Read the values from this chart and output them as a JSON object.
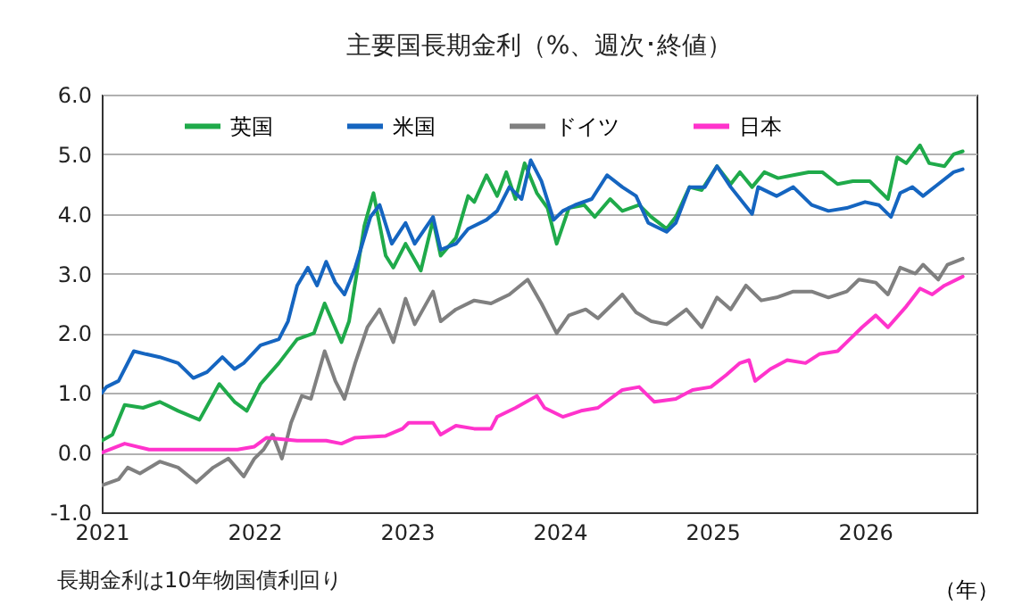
{
  "chart_data": {
    "type": "line",
    "title": "主要国長期金利（%、週次･終値）",
    "xlabel": "（年）",
    "annotations": [
      "長期金利は10年物国債利回り"
    ],
    "xlim": [
      2021,
      2026.73
    ],
    "xticks": [
      2021,
      2022,
      2023,
      2024,
      2025,
      2026
    ],
    "ylim": [
      -1.0,
      6.0
    ],
    "yticks": [
      {
        "value": -1,
        "label": "-1.0"
      },
      {
        "value": 0,
        "label": "0.0"
      },
      {
        "value": 1,
        "label": "1.0"
      },
      {
        "value": 2,
        "label": "2.0"
      },
      {
        "value": 3,
        "label": "3.0"
      },
      {
        "value": 4,
        "label": "4.0"
      },
      {
        "value": 5,
        "label": "5.0"
      },
      {
        "value": 6,
        "label": "6.0"
      }
    ],
    "grid": "y",
    "legend": "top",
    "line_style": "solid",
    "marker": "none",
    "series": [
      {
        "name": "英国",
        "color": "#1faa4a",
        "x": [
          2021.0,
          2021.07,
          2021.15,
          2021.27,
          2021.38,
          2021.5,
          2021.64,
          2021.77,
          2021.87,
          2021.95,
          2022.04,
          2022.16,
          2022.28,
          2022.39,
          2022.46,
          2022.57,
          2022.62,
          2022.72,
          2022.78,
          2022.86,
          2022.91,
          2022.99,
          2023.09,
          2023.17,
          2023.22,
          2023.32,
          2023.4,
          2023.44,
          2023.52,
          2023.59,
          2023.65,
          2023.71,
          2023.77,
          2023.85,
          2023.92,
          2023.98,
          2024.06,
          2024.16,
          2024.23,
          2024.33,
          2024.41,
          2024.52,
          2024.6,
          2024.7,
          2024.76,
          2024.85,
          2024.93,
          2025.03,
          2025.12,
          2025.18,
          2025.26,
          2025.34,
          2025.43,
          2025.53,
          2025.63,
          2025.72,
          2025.82,
          2025.92,
          2026.03,
          2026.15,
          2026.21,
          2026.27,
          2026.36,
          2026.42,
          2026.52,
          2026.58,
          2026.64
        ],
        "values": [
          0.2,
          0.3,
          0.8,
          0.75,
          0.85,
          0.7,
          0.55,
          1.15,
          0.85,
          0.7,
          1.15,
          1.5,
          1.9,
          2.0,
          2.5,
          1.85,
          2.2,
          3.8,
          4.35,
          3.3,
          3.1,
          3.5,
          3.05,
          3.9,
          3.3,
          3.6,
          4.3,
          4.2,
          4.65,
          4.3,
          4.7,
          4.25,
          4.85,
          4.35,
          4.1,
          3.5,
          4.1,
          4.15,
          3.95,
          4.25,
          4.05,
          4.15,
          3.95,
          3.75,
          3.95,
          4.45,
          4.4,
          4.8,
          4.5,
          4.7,
          4.45,
          4.7,
          4.6,
          4.65,
          4.7,
          4.7,
          4.5,
          4.55,
          4.55,
          4.25,
          4.95,
          4.85,
          5.15,
          4.85,
          4.8,
          5.0,
          5.05
        ]
      },
      {
        "name": "米国",
        "color": "#1565c0",
        "x": [
          2021.0,
          2021.03,
          2021.11,
          2021.21,
          2021.29,
          2021.38,
          2021.5,
          2021.6,
          2021.69,
          2021.79,
          2021.87,
          2021.93,
          2022.04,
          2022.16,
          2022.22,
          2022.28,
          2022.35,
          2022.41,
          2022.47,
          2022.53,
          2022.59,
          2022.66,
          2022.76,
          2022.82,
          2022.9,
          2022.99,
          2023.05,
          2023.17,
          2023.22,
          2023.32,
          2023.4,
          2023.52,
          2023.59,
          2023.67,
          2023.75,
          2023.81,
          2023.88,
          2023.96,
          2024.02,
          2024.1,
          2024.21,
          2024.31,
          2024.41,
          2024.5,
          2024.58,
          2024.7,
          2024.76,
          2024.85,
          2024.95,
          2025.03,
          2025.12,
          2025.26,
          2025.3,
          2025.42,
          2025.53,
          2025.65,
          2025.76,
          2025.88,
          2026.0,
          2026.09,
          2026.17,
          2026.23,
          2026.31,
          2026.38,
          2026.48,
          2026.58,
          2026.64
        ],
        "values": [
          1.0,
          1.1,
          1.2,
          1.7,
          1.65,
          1.6,
          1.5,
          1.25,
          1.35,
          1.6,
          1.4,
          1.5,
          1.8,
          1.9,
          2.2,
          2.8,
          3.1,
          2.8,
          3.2,
          2.85,
          2.65,
          3.1,
          3.95,
          4.15,
          3.5,
          3.85,
          3.5,
          3.95,
          3.4,
          3.5,
          3.75,
          3.9,
          4.05,
          4.45,
          4.25,
          4.9,
          4.55,
          3.9,
          4.05,
          4.15,
          4.25,
          4.65,
          4.45,
          4.3,
          3.85,
          3.7,
          3.85,
          4.45,
          4.45,
          4.8,
          4.45,
          4.0,
          4.45,
          4.3,
          4.45,
          4.15,
          4.05,
          4.1,
          4.2,
          4.15,
          3.95,
          4.35,
          4.45,
          4.3,
          4.5,
          4.7,
          4.75
        ]
      },
      {
        "name": "ドイツ",
        "color": "#808080",
        "x": [
          2021.0,
          2021.11,
          2021.17,
          2021.25,
          2021.38,
          2021.5,
          2021.62,
          2021.73,
          2021.83,
          2021.93,
          2022.0,
          2022.06,
          2022.12,
          2022.18,
          2022.24,
          2022.31,
          2022.37,
          2022.46,
          2022.53,
          2022.59,
          2022.66,
          2022.74,
          2022.82,
          2022.91,
          2022.99,
          2023.05,
          2023.17,
          2023.22,
          2023.32,
          2023.44,
          2023.55,
          2023.59,
          2023.67,
          2023.79,
          2023.88,
          2023.98,
          2024.06,
          2024.17,
          2024.25,
          2024.41,
          2024.5,
          2024.6,
          2024.7,
          2024.83,
          2024.93,
          2025.03,
          2025.12,
          2025.22,
          2025.32,
          2025.42,
          2025.53,
          2025.65,
          2025.76,
          2025.88,
          2025.96,
          2026.07,
          2026.15,
          2026.23,
          2026.33,
          2026.38,
          2026.48,
          2026.54,
          2026.64
        ],
        "values": [
          -0.55,
          -0.45,
          -0.25,
          -0.35,
          -0.15,
          -0.25,
          -0.5,
          -0.25,
          -0.1,
          -0.4,
          -0.1,
          0.05,
          0.3,
          -0.1,
          0.5,
          0.95,
          0.9,
          1.7,
          1.2,
          0.9,
          1.5,
          2.1,
          2.4,
          1.85,
          2.58,
          2.15,
          2.7,
          2.2,
          2.4,
          2.55,
          2.5,
          2.55,
          2.65,
          2.9,
          2.5,
          2.0,
          2.3,
          2.4,
          2.25,
          2.65,
          2.35,
          2.2,
          2.15,
          2.4,
          2.1,
          2.6,
          2.4,
          2.8,
          2.55,
          2.6,
          2.7,
          2.7,
          2.6,
          2.7,
          2.9,
          2.85,
          2.65,
          3.1,
          3.0,
          3.15,
          2.9,
          3.15,
          3.25
        ]
      },
      {
        "name": "日本",
        "color": "#ff33cc",
        "x": [
          2021.0,
          2021.15,
          2021.31,
          2021.5,
          2021.69,
          2021.89,
          2022.0,
          2022.08,
          2022.28,
          2022.47,
          2022.57,
          2022.66,
          2022.86,
          2022.97,
          2023.01,
          2023.17,
          2023.22,
          2023.32,
          2023.44,
          2023.55,
          2023.59,
          2023.71,
          2023.85,
          2023.9,
          2024.02,
          2024.14,
          2024.25,
          2024.41,
          2024.52,
          2024.62,
          2024.76,
          2024.87,
          2024.99,
          2025.09,
          2025.18,
          2025.24,
          2025.28,
          2025.38,
          2025.49,
          2025.61,
          2025.7,
          2025.82,
          2025.9,
          2025.98,
          2026.07,
          2026.15,
          2026.27,
          2026.36,
          2026.44,
          2026.52,
          2026.64
        ],
        "values": [
          0.0,
          0.15,
          0.05,
          0.05,
          0.05,
          0.05,
          0.1,
          0.25,
          0.2,
          0.2,
          0.15,
          0.25,
          0.28,
          0.4,
          0.5,
          0.5,
          0.3,
          0.45,
          0.4,
          0.4,
          0.6,
          0.75,
          0.95,
          0.75,
          0.6,
          0.7,
          0.75,
          1.05,
          1.1,
          0.85,
          0.9,
          1.05,
          1.1,
          1.3,
          1.5,
          1.55,
          1.2,
          1.4,
          1.55,
          1.5,
          1.65,
          1.7,
          1.9,
          2.1,
          2.3,
          2.1,
          2.45,
          2.75,
          2.65,
          2.8,
          2.95
        ]
      }
    ]
  }
}
